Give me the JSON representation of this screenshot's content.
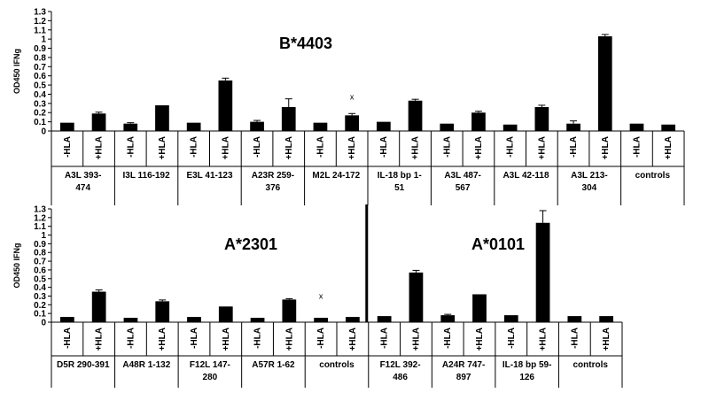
{
  "chart_data": [
    {
      "type": "bar",
      "title": "B*4403",
      "ylabel": "OD450 IFNg",
      "ylim": [
        0,
        1.3
      ],
      "ytick_step": 0.1,
      "yticks": [
        "0",
        "0.1",
        "0.2",
        "0.3",
        "0.4",
        "0.5",
        "0.6",
        "0.7",
        "0.8",
        "0.9",
        "1",
        "1.1",
        "1.2",
        "1.3"
      ],
      "conditions": [
        "-HLA",
        "+HLA"
      ],
      "groups": [
        {
          "label": [
            "A3L 393-",
            "474"
          ],
          "values": [
            0.09,
            0.19
          ],
          "errors": [
            0,
            0.015
          ]
        },
        {
          "label": [
            "I3L 116-192"
          ],
          "values": [
            0.08,
            0.28
          ],
          "errors": [
            0.01,
            0
          ]
        },
        {
          "label": [
            "E3L 41-123"
          ],
          "values": [
            0.09,
            0.55
          ],
          "errors": [
            0,
            0.025
          ]
        },
        {
          "label": [
            "A23R 259-",
            "376"
          ],
          "values": [
            0.1,
            0.26
          ],
          "errors": [
            0.015,
            0.09
          ]
        },
        {
          "label": [
            "M2L 24-172"
          ],
          "values": [
            0.09,
            0.17
          ],
          "errors": [
            0,
            0.02
          ]
        },
        {
          "label": [
            "IL-18 bp 1-",
            "51"
          ],
          "values": [
            0.1,
            0.33
          ],
          "errors": [
            0,
            0.015
          ]
        },
        {
          "label": [
            "A3L 487-",
            "567"
          ],
          "values": [
            0.08,
            0.2
          ],
          "errors": [
            0,
            0.015
          ]
        },
        {
          "label": [
            "A3L 42-118"
          ],
          "values": [
            0.07,
            0.26
          ],
          "errors": [
            0,
            0.02
          ]
        },
        {
          "label": [
            "A3L 213-",
            "304"
          ],
          "values": [
            0.08,
            1.03
          ],
          "errors": [
            0.03,
            0.02
          ]
        },
        {
          "label": [
            "controls"
          ],
          "values": [
            0.08,
            0.07
          ],
          "errors": [
            0,
            0
          ]
        }
      ],
      "markers": [
        {
          "group": 4,
          "text": "x"
        }
      ]
    },
    {
      "type": "bar",
      "titles": [
        "A*2301",
        "A*0101"
      ],
      "ylabel": "OD450 IFNg",
      "ylim": [
        0,
        1.3
      ],
      "ytick_step": 0.1,
      "yticks": [
        "0",
        "0.1",
        "0.2",
        "0.3",
        "0.4",
        "0.5",
        "0.6",
        "0.7",
        "0.8",
        "0.9",
        "1",
        "1.1",
        "1.2",
        "1.3"
      ],
      "conditions": [
        "-HLA",
        "+HLA"
      ],
      "divider_after_group": 4,
      "groups": [
        {
          "label": [
            "D5R 290-391"
          ],
          "values": [
            0.06,
            0.35
          ],
          "errors": [
            0,
            0.02
          ]
        },
        {
          "label": [
            "A48R 1-132"
          ],
          "values": [
            0.05,
            0.24
          ],
          "errors": [
            0,
            0.015
          ]
        },
        {
          "label": [
            "F12L 147-",
            "280"
          ],
          "values": [
            0.06,
            0.18
          ],
          "errors": [
            0,
            0
          ]
        },
        {
          "label": [
            "A57R 1-62"
          ],
          "values": [
            0.05,
            0.26
          ],
          "errors": [
            0,
            0.01
          ]
        },
        {
          "label": [
            "controls"
          ],
          "values": [
            0.05,
            0.06
          ],
          "errors": [
            0,
            0
          ]
        },
        {
          "label": [
            "F12L 392-",
            "486"
          ],
          "values": [
            0.07,
            0.57
          ],
          "errors": [
            0,
            0.025
          ]
        },
        {
          "label": [
            "A24R 747-",
            "897"
          ],
          "values": [
            0.08,
            0.32
          ],
          "errors": [
            0.01,
            0
          ]
        },
        {
          "label": [
            "IL-18 bp 59-",
            "126"
          ],
          "values": [
            0.08,
            1.14
          ],
          "errors": [
            0,
            0.14
          ]
        },
        {
          "label": [
            "controls"
          ],
          "values": [
            0.07,
            0.07
          ],
          "errors": [
            0,
            0
          ]
        }
      ],
      "markers": [
        {
          "group": 4,
          "text": "x"
        }
      ]
    }
  ]
}
